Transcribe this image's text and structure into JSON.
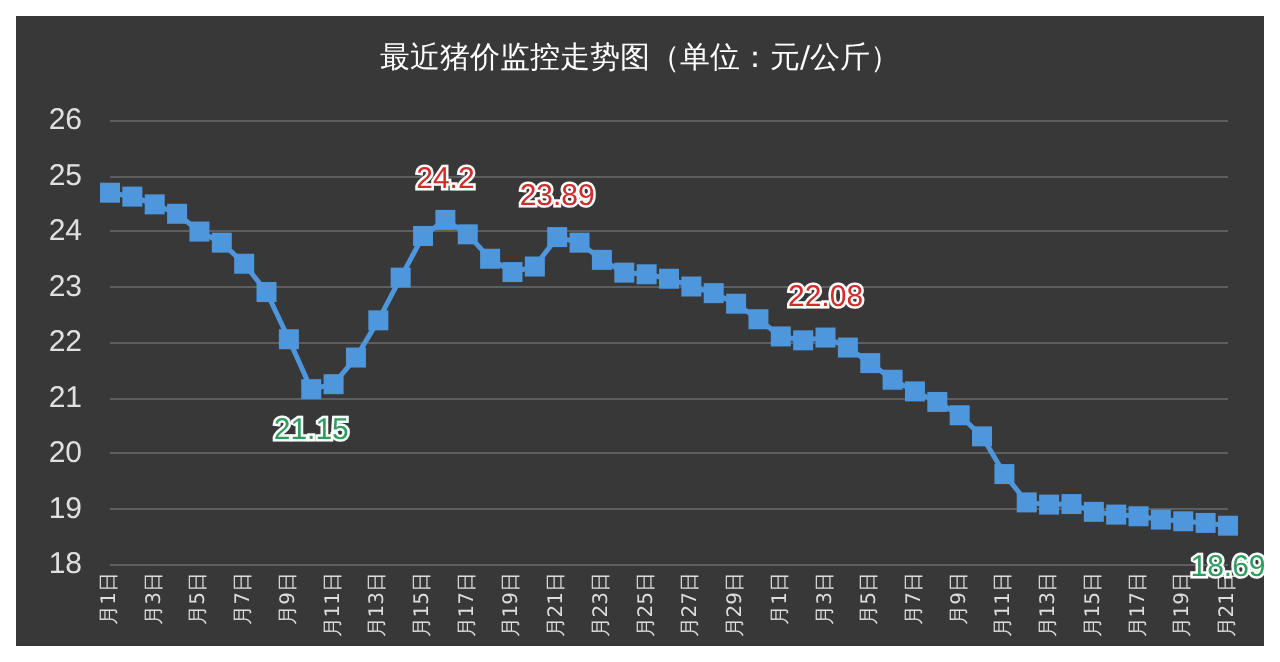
{
  "chart_data": {
    "type": "line",
    "title": "最近猪价监控走势图（单位：元/公斤）",
    "categories": [
      "月1日",
      null,
      "月3日",
      null,
      "月5日",
      null,
      "月7日",
      null,
      "月9日",
      null,
      "月11日",
      null,
      "月13日",
      null,
      "月15日",
      null,
      "月17日",
      null,
      "月19日",
      null,
      "月21日",
      null,
      "月23日",
      null,
      "月25日",
      null,
      "月27日",
      null,
      "月29日",
      null,
      "月1日",
      null,
      "月3日",
      null,
      "月5日",
      null,
      "月7日",
      null,
      "月9日",
      null,
      "月11日",
      null,
      "月13日",
      null,
      "月15日",
      null,
      "月17日",
      null,
      "月19日",
      null,
      "月21日"
    ],
    "series": [
      {
        "color": "#4f97dc",
        "values": [
          24.69,
          24.62,
          24.48,
          24.31,
          23.99,
          23.79,
          23.41,
          22.9,
          22.05,
          21.15,
          21.24,
          21.72,
          22.39,
          23.16,
          23.91,
          24.2,
          23.94,
          23.5,
          23.26,
          23.36,
          23.89,
          23.79,
          23.48,
          23.25,
          23.22,
          23.14,
          23.0,
          22.88,
          22.69,
          22.41,
          22.1,
          22.03,
          22.08,
          21.9,
          21.62,
          21.32,
          21.11,
          20.92,
          20.68,
          20.3,
          19.62,
          19.11,
          19.07,
          19.08,
          18.94,
          18.89,
          18.86,
          18.8,
          18.77,
          18.74,
          18.69
        ],
        "value_labels": [
          null,
          null,
          null,
          null,
          null,
          null,
          null,
          null,
          null,
          "21.15",
          null,
          null,
          null,
          null,
          null,
          "24.2",
          null,
          null,
          null,
          null,
          "23.89",
          null,
          null,
          null,
          null,
          null,
          null,
          null,
          null,
          null,
          null,
          null,
          "22.08",
          null,
          null,
          null,
          null,
          null,
          null,
          null,
          null,
          null,
          null,
          null,
          null,
          null,
          null,
          null,
          null,
          null,
          "18.69"
        ]
      }
    ],
    "ylim": [
      18,
      26
    ],
    "yticks": [
      18,
      19,
      20,
      21,
      22,
      23,
      24,
      25,
      26
    ],
    "grid": "y",
    "marker": "square",
    "line_style": "solid"
  }
}
